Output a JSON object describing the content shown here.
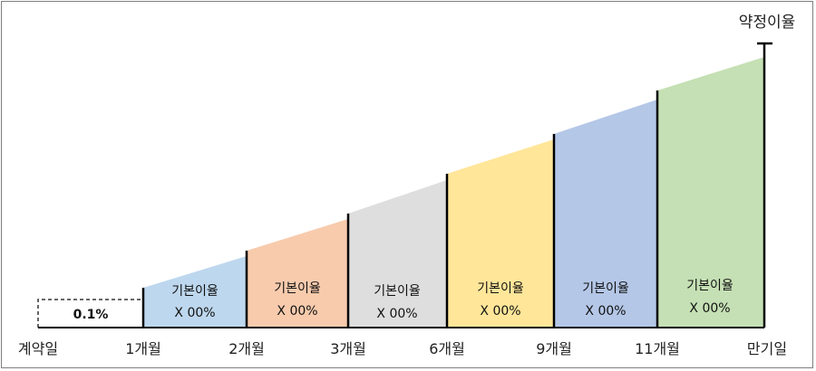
{
  "diagram": {
    "top_label": "약정이율",
    "initial_rate": "0.1%",
    "segments": [
      {
        "rate_label": "기본이율",
        "multiplier": "X 00%",
        "color": "#bdd7ee"
      },
      {
        "rate_label": "기본이율",
        "multiplier": "X 00%",
        "color": "#f8cbad"
      },
      {
        "rate_label": "기본이율",
        "multiplier": "X 00%",
        "color": "#dedede"
      },
      {
        "rate_label": "기본이율",
        "multiplier": "X 00%",
        "color": "#ffe699"
      },
      {
        "rate_label": "기본이율",
        "multiplier": "X 00%",
        "color": "#b4c7e7"
      },
      {
        "rate_label": "기본이율",
        "multiplier": "X 00%",
        "color": "#c5e0b4"
      }
    ],
    "axis_labels": [
      "계약일",
      "1개월",
      "2개월",
      "3개월",
      "6개월",
      "9개월",
      "11개월",
      "만기일"
    ]
  }
}
